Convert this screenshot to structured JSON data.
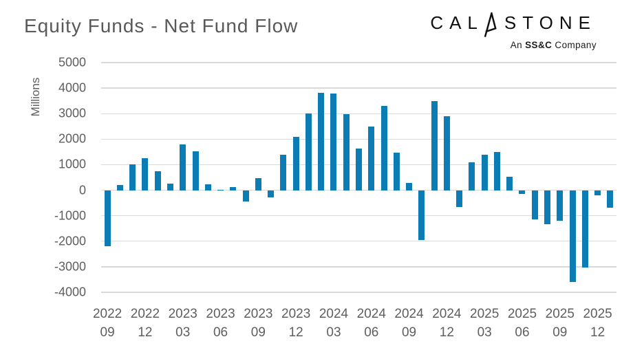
{
  "header": {
    "title": "Equity Funds - Net Fund Flow"
  },
  "logo": {
    "brand_prefix": "CAL",
    "brand_suffix": "STONE",
    "tagline_prefix": "An ",
    "tagline_bold": "SS&C",
    "tagline_suffix": " Company"
  },
  "chart_data": {
    "type": "bar",
    "title": "Equity Funds - Net Fund Flow",
    "xlabel": "",
    "ylabel": "Millions",
    "ylim": [
      -4000,
      5000
    ],
    "y_ticks": [
      5000,
      4000,
      3000,
      2000,
      1000,
      0,
      -1000,
      -2000,
      -3000,
      -4000
    ],
    "grid": true,
    "legend_position": "none",
    "bar_color": "#0b7db4",
    "gridline_color": "#d9d9d9",
    "x_tick_every": 3,
    "categories": [
      "2022-09",
      "2022-10",
      "2022-11",
      "2022-12",
      "2023-01",
      "2023-02",
      "2023-03",
      "2023-04",
      "2023-05",
      "2023-06",
      "2023-07",
      "2023-08",
      "2023-09",
      "2023-10",
      "2023-11",
      "2023-12",
      "2024-01",
      "2024-02",
      "2024-03",
      "2024-04",
      "2024-05",
      "2024-06",
      "2024-07",
      "2024-08",
      "2024-09",
      "2024-10",
      "2024-11",
      "2024-12",
      "2025-01",
      "2025-02",
      "2025-03",
      "2025-04",
      "2025-05",
      "2025-06",
      "2025-07",
      "2025-08",
      "2025-09",
      "2025-10",
      "2025-11",
      "2025-12",
      "2026-01"
    ],
    "values": [
      -2200,
      200,
      1000,
      1250,
      730,
      260,
      1780,
      1520,
      240,
      20,
      130,
      -430,
      480,
      -280,
      1390,
      2080,
      3000,
      3820,
      3790,
      2980,
      1620,
      2490,
      3290,
      1470,
      290,
      -1940,
      3490,
      2900,
      -660,
      1080,
      1380,
      1500,
      520,
      -150,
      -1150,
      -1330,
      -1210,
      -3600,
      -3040,
      -200,
      -690
    ]
  }
}
